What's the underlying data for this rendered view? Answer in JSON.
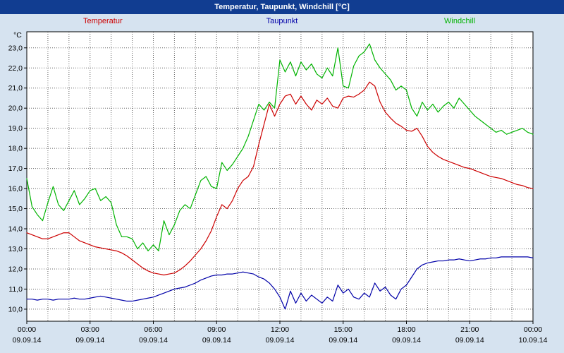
{
  "window": {
    "title": "Temperatur, Taupunkt, Windchill [°C]"
  },
  "colors": {
    "background": "#d6e3f0",
    "titlebar_bg": "#113d91",
    "titlebar_text": "#ffffff",
    "plot_bg": "#ffffff",
    "plot_border": "#000000",
    "grid": "#666666",
    "axis_text": "#000000"
  },
  "legend": [
    {
      "label": "Temperatur",
      "color": "#cc0000"
    },
    {
      "label": "Taupunkt",
      "color": "#0000a8"
    },
    {
      "label": "Windchill",
      "color": "#00b300"
    }
  ],
  "chart_data": {
    "type": "line",
    "title": "Temperatur, Taupunkt, Windchill [°C]",
    "ylabel": "°C",
    "xlabel": "",
    "ylim": [
      10.0,
      23.0
    ],
    "x_range_hours": [
      0,
      24
    ],
    "x_step_hours": 0.25,
    "grid": "dotted; vertical every hour, horizontal every 1.0 °C",
    "legend_position": "top",
    "y_ticks": [
      {
        "value": 23,
        "label": "23,0"
      },
      {
        "value": 22,
        "label": "22,0"
      },
      {
        "value": 21,
        "label": "21,0"
      },
      {
        "value": 20,
        "label": "20,0"
      },
      {
        "value": 19,
        "label": "19,0"
      },
      {
        "value": 18,
        "label": "18,0"
      },
      {
        "value": 17,
        "label": "17,0"
      },
      {
        "value": 16,
        "label": "16,0"
      },
      {
        "value": 15,
        "label": "15,0"
      },
      {
        "value": 14,
        "label": "14,0"
      },
      {
        "value": 13,
        "label": "13,0"
      },
      {
        "value": 12,
        "label": "12,0"
      },
      {
        "value": 11,
        "label": "11,0"
      },
      {
        "value": 10,
        "label": "10,0"
      }
    ],
    "x_ticks": [
      {
        "hour": 0,
        "time": "00:00",
        "date": "09.09.14"
      },
      {
        "hour": 3,
        "time": "03:00",
        "date": "09.09.14"
      },
      {
        "hour": 6,
        "time": "06:00",
        "date": "09.09.14"
      },
      {
        "hour": 9,
        "time": "09:00",
        "date": "09.09.14"
      },
      {
        "hour": 12,
        "time": "12:00",
        "date": "09.09.14"
      },
      {
        "hour": 15,
        "time": "15:00",
        "date": "09.09.14"
      },
      {
        "hour": 18,
        "time": "18:00",
        "date": "09.09.14"
      },
      {
        "hour": 21,
        "time": "21:00",
        "date": "09.09.14"
      },
      {
        "hour": 24,
        "time": "00:00",
        "date": "10.09.14"
      }
    ],
    "series": [
      {
        "name": "Temperatur",
        "color": "#cc0000",
        "values": [
          13.8,
          13.7,
          13.6,
          13.5,
          13.5,
          13.6,
          13.7,
          13.8,
          13.8,
          13.6,
          13.4,
          13.3,
          13.2,
          13.1,
          13.05,
          13.0,
          12.95,
          12.9,
          12.8,
          12.65,
          12.45,
          12.25,
          12.05,
          11.9,
          11.8,
          11.75,
          11.7,
          11.75,
          11.8,
          11.95,
          12.15,
          12.4,
          12.7,
          13.0,
          13.4,
          13.9,
          14.6,
          15.2,
          15.0,
          15.4,
          16.0,
          16.4,
          16.6,
          17.1,
          18.2,
          19.2,
          20.2,
          19.6,
          20.2,
          20.6,
          20.7,
          20.2,
          20.6,
          20.2,
          19.9,
          20.4,
          20.2,
          20.5,
          20.1,
          20.0,
          20.5,
          20.6,
          20.55,
          20.7,
          20.9,
          21.3,
          21.1,
          20.3,
          19.8,
          19.5,
          19.25,
          19.1,
          18.9,
          18.85,
          19.0,
          18.6,
          18.1,
          17.8,
          17.6,
          17.45,
          17.35,
          17.25,
          17.15,
          17.05,
          17.0,
          16.9,
          16.8,
          16.7,
          16.6,
          16.55,
          16.5,
          16.4,
          16.3,
          16.2,
          16.15,
          16.05,
          16.0
        ]
      },
      {
        "name": "Taupunkt",
        "color": "#0000a8",
        "values": [
          10.5,
          10.5,
          10.45,
          10.5,
          10.5,
          10.45,
          10.5,
          10.5,
          10.5,
          10.55,
          10.5,
          10.5,
          10.55,
          10.6,
          10.65,
          10.6,
          10.55,
          10.5,
          10.45,
          10.4,
          10.4,
          10.45,
          10.5,
          10.55,
          10.6,
          10.7,
          10.8,
          10.9,
          11.0,
          11.05,
          11.1,
          11.2,
          11.3,
          11.45,
          11.55,
          11.65,
          11.7,
          11.7,
          11.75,
          11.75,
          11.8,
          11.85,
          11.8,
          11.75,
          11.6,
          11.5,
          11.3,
          11.0,
          10.6,
          10.0,
          10.9,
          10.3,
          10.8,
          10.4,
          10.7,
          10.5,
          10.3,
          10.6,
          10.4,
          11.2,
          10.8,
          11.0,
          10.6,
          10.5,
          10.8,
          10.6,
          11.3,
          10.9,
          11.1,
          10.7,
          10.5,
          11.0,
          11.2,
          11.6,
          12.0,
          12.2,
          12.3,
          12.35,
          12.4,
          12.4,
          12.45,
          12.45,
          12.5,
          12.45,
          12.4,
          12.45,
          12.5,
          12.5,
          12.55,
          12.55,
          12.6,
          12.6,
          12.6,
          12.6,
          12.6,
          12.6,
          12.55
        ]
      },
      {
        "name": "Windchill",
        "color": "#00b300",
        "values": [
          16.5,
          15.1,
          14.7,
          14.4,
          15.3,
          16.1,
          15.2,
          14.9,
          15.4,
          15.9,
          15.2,
          15.5,
          15.9,
          16.0,
          15.4,
          15.6,
          15.3,
          14.2,
          13.6,
          13.6,
          13.5,
          13.0,
          13.3,
          12.9,
          13.2,
          12.9,
          14.4,
          13.7,
          14.2,
          14.9,
          15.2,
          15.0,
          15.7,
          16.4,
          16.6,
          16.1,
          16.0,
          17.3,
          16.9,
          17.2,
          17.6,
          18.0,
          18.6,
          19.4,
          20.2,
          19.9,
          20.3,
          20.0,
          22.4,
          21.8,
          22.3,
          21.6,
          22.3,
          21.9,
          22.2,
          21.7,
          21.5,
          22.0,
          21.6,
          23.0,
          21.1,
          21.0,
          22.1,
          22.6,
          22.8,
          23.2,
          22.4,
          22.0,
          21.7,
          21.4,
          20.9,
          21.1,
          20.9,
          20.0,
          19.6,
          20.3,
          19.9,
          20.2,
          19.8,
          20.1,
          20.3,
          20.0,
          20.5,
          20.2,
          19.9,
          19.6,
          19.4,
          19.2,
          19.0,
          18.8,
          18.9,
          18.7,
          18.8,
          18.9,
          19.0,
          18.8,
          18.7
        ]
      }
    ]
  }
}
